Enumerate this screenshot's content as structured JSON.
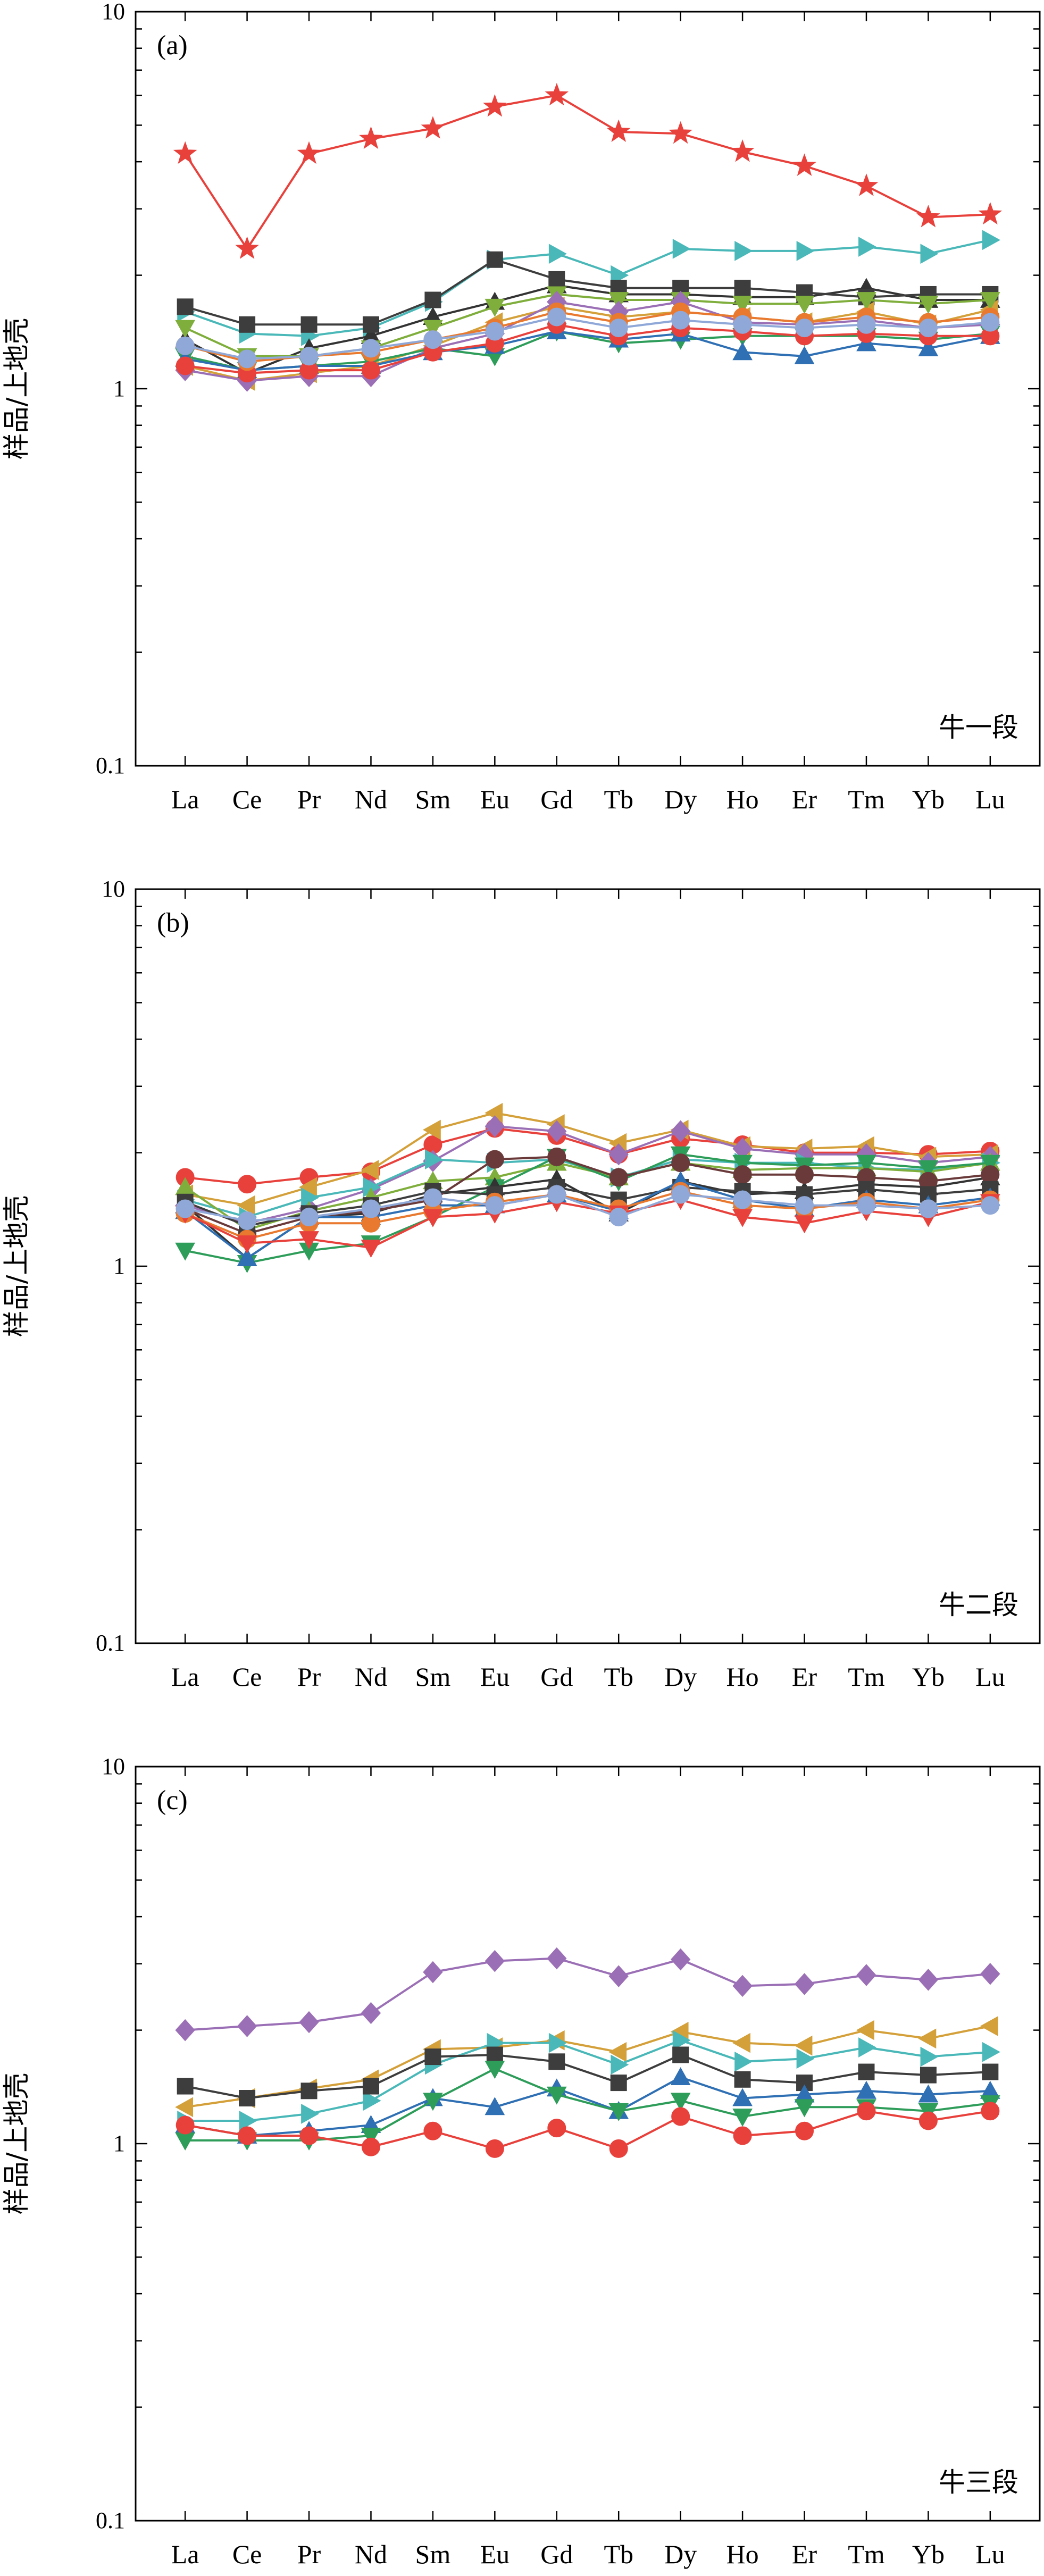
{
  "chart_data": [
    {
      "type": "line",
      "panel_label": "(a)",
      "section_label": "牛一段",
      "ylabel": "样品/上地壳",
      "yscale": "log",
      "ylim": [
        0.1,
        10
      ],
      "yticks": [
        "0.1",
        "1",
        "10"
      ],
      "categories": [
        "La",
        "Ce",
        "Pr",
        "Nd",
        "Sm",
        "Eu",
        "Gd",
        "Tb",
        "Dy",
        "Ho",
        "Er",
        "Tm",
        "Yb",
        "Lu"
      ],
      "series": [
        {
          "color": "#e8413c",
          "marker": "star",
          "values": [
            4.2,
            2.35,
            4.2,
            4.6,
            4.9,
            5.6,
            6.0,
            4.8,
            4.75,
            4.25,
            3.9,
            3.45,
            2.85,
            2.9
          ]
        },
        {
          "color": "#4ab8b8",
          "marker": "triangle-right",
          "values": [
            1.6,
            1.4,
            1.38,
            1.45,
            1.7,
            2.2,
            2.28,
            2.0,
            2.35,
            2.32,
            2.32,
            2.38,
            2.28,
            2.48
          ]
        },
        {
          "color": "#333333",
          "marker": "triangle-up",
          "values": [
            1.35,
            1.1,
            1.28,
            1.38,
            1.55,
            1.7,
            1.88,
            1.78,
            1.78,
            1.75,
            1.75,
            1.85,
            1.72,
            1.72
          ]
        },
        {
          "color": "#3d3d3d",
          "marker": "square",
          "values": [
            1.65,
            1.48,
            1.48,
            1.48,
            1.72,
            2.2,
            1.95,
            1.85,
            1.85,
            1.85,
            1.8,
            1.75,
            1.78,
            1.78
          ]
        },
        {
          "color": "#d4a03a",
          "marker": "triangle-left",
          "values": [
            1.15,
            1.05,
            1.1,
            1.15,
            1.3,
            1.5,
            1.65,
            1.55,
            1.6,
            1.55,
            1.5,
            1.6,
            1.48,
            1.62
          ]
        },
        {
          "color": "#7fae3c",
          "marker": "triangle-down",
          "values": [
            1.45,
            1.22,
            1.22,
            1.28,
            1.45,
            1.65,
            1.78,
            1.72,
            1.72,
            1.68,
            1.68,
            1.72,
            1.68,
            1.72
          ]
        },
        {
          "color": "#2e9d5a",
          "marker": "triangle-down",
          "values": [
            1.22,
            1.12,
            1.15,
            1.18,
            1.28,
            1.22,
            1.42,
            1.32,
            1.35,
            1.38,
            1.38,
            1.38,
            1.35,
            1.4
          ]
        },
        {
          "color": "#9b6fb5",
          "marker": "diamond",
          "values": [
            1.12,
            1.05,
            1.08,
            1.08,
            1.28,
            1.4,
            1.7,
            1.6,
            1.7,
            1.5,
            1.48,
            1.52,
            1.45,
            1.48
          ]
        },
        {
          "color": "#2f6fb3",
          "marker": "triangle-up",
          "values": [
            1.2,
            1.12,
            1.15,
            1.15,
            1.25,
            1.3,
            1.42,
            1.35,
            1.4,
            1.25,
            1.22,
            1.32,
            1.28,
            1.38
          ]
        },
        {
          "color": "#e8413c",
          "marker": "circle",
          "values": [
            1.15,
            1.1,
            1.12,
            1.12,
            1.25,
            1.32,
            1.48,
            1.38,
            1.45,
            1.42,
            1.38,
            1.4,
            1.38,
            1.38
          ]
        },
        {
          "color": "#e8792e",
          "marker": "circle",
          "values": [
            1.3,
            1.18,
            1.22,
            1.25,
            1.35,
            1.45,
            1.6,
            1.5,
            1.6,
            1.55,
            1.5,
            1.55,
            1.5,
            1.55
          ]
        },
        {
          "color": "#8fa8d8",
          "marker": "circle",
          "values": [
            1.3,
            1.2,
            1.22,
            1.28,
            1.35,
            1.42,
            1.55,
            1.45,
            1.52,
            1.48,
            1.45,
            1.48,
            1.45,
            1.5
          ]
        }
      ]
    },
    {
      "type": "line",
      "panel_label": "(b)",
      "section_label": "牛二段",
      "ylabel": "样品/上地壳",
      "yscale": "log",
      "ylim": [
        0.1,
        10
      ],
      "yticks": [
        "0.1",
        "1",
        "10"
      ],
      "categories": [
        "La",
        "Ce",
        "Pr",
        "Nd",
        "Sm",
        "Eu",
        "Gd",
        "Tb",
        "Dy",
        "Ho",
        "Er",
        "Tm",
        "Yb",
        "Lu"
      ],
      "series": [
        {
          "color": "#e8413c",
          "marker": "circle",
          "values": [
            1.72,
            1.65,
            1.72,
            1.78,
            2.1,
            2.32,
            2.22,
            1.98,
            2.18,
            2.1,
            2.0,
            2.0,
            1.98,
            2.02
          ]
        },
        {
          "color": "#d4a03a",
          "marker": "triangle-left",
          "values": [
            1.55,
            1.45,
            1.62,
            1.8,
            2.3,
            2.55,
            2.38,
            2.12,
            2.3,
            2.08,
            2.05,
            2.08,
            1.95,
            1.98
          ]
        },
        {
          "color": "#9b6fb5",
          "marker": "diamond",
          "values": [
            1.45,
            1.3,
            1.42,
            1.6,
            1.9,
            2.35,
            2.28,
            1.98,
            2.28,
            2.05,
            1.98,
            1.98,
            1.88,
            1.95
          ]
        },
        {
          "color": "#4ab8b8",
          "marker": "triangle-right",
          "values": [
            1.5,
            1.35,
            1.52,
            1.62,
            1.92,
            1.88,
            1.92,
            1.72,
            1.92,
            1.88,
            1.88,
            1.82,
            1.8,
            1.88
          ]
        },
        {
          "color": "#7fae3c",
          "marker": "triangle-up",
          "values": [
            1.62,
            1.25,
            1.4,
            1.52,
            1.68,
            1.72,
            1.88,
            1.72,
            1.88,
            1.8,
            1.82,
            1.82,
            1.78,
            1.88
          ]
        },
        {
          "color": "#2e9d5a",
          "marker": "triangle-down",
          "values": [
            1.1,
            1.02,
            1.1,
            1.15,
            1.35,
            1.62,
            1.95,
            1.68,
            1.98,
            1.88,
            1.85,
            1.88,
            1.82,
            1.88
          ]
        },
        {
          "color": "#333333",
          "marker": "triangle-up",
          "values": [
            1.45,
            1.05,
            1.35,
            1.38,
            1.55,
            1.62,
            1.7,
            1.38,
            1.68,
            1.55,
            1.58,
            1.65,
            1.62,
            1.72
          ]
        },
        {
          "color": "#6a3a3a",
          "marker": "circle",
          "values": [
            1.42,
            1.22,
            1.35,
            1.4,
            1.5,
            1.92,
            1.95,
            1.72,
            1.88,
            1.75,
            1.75,
            1.72,
            1.68,
            1.75
          ]
        },
        {
          "color": "#3d3d3d",
          "marker": "square",
          "values": [
            1.48,
            1.28,
            1.38,
            1.45,
            1.58,
            1.55,
            1.62,
            1.5,
            1.62,
            1.58,
            1.55,
            1.6,
            1.55,
            1.6
          ]
        },
        {
          "color": "#2f6fb3",
          "marker": "triangle-up",
          "values": [
            1.4,
            1.05,
            1.35,
            1.35,
            1.45,
            1.45,
            1.55,
            1.4,
            1.68,
            1.5,
            1.42,
            1.5,
            1.45,
            1.52
          ]
        },
        {
          "color": "#e8792e",
          "marker": "circle",
          "values": [
            1.38,
            1.18,
            1.3,
            1.3,
            1.4,
            1.48,
            1.55,
            1.42,
            1.58,
            1.45,
            1.42,
            1.48,
            1.42,
            1.5
          ]
        },
        {
          "color": "#e8413c",
          "marker": "triangle-down",
          "values": [
            1.38,
            1.15,
            1.18,
            1.12,
            1.35,
            1.38,
            1.48,
            1.38,
            1.5,
            1.35,
            1.3,
            1.4,
            1.35,
            1.48
          ]
        },
        {
          "color": "#8fa8d8",
          "marker": "circle",
          "values": [
            1.42,
            1.32,
            1.35,
            1.42,
            1.52,
            1.45,
            1.55,
            1.35,
            1.55,
            1.5,
            1.45,
            1.45,
            1.42,
            1.45
          ]
        }
      ]
    },
    {
      "type": "line",
      "panel_label": "(c)",
      "section_label": "牛三段",
      "ylabel": "样品/上地壳",
      "yscale": "log",
      "ylim": [
        0.1,
        10
      ],
      "yticks": [
        "0.1",
        "1",
        "10"
      ],
      "categories": [
        "La",
        "Ce",
        "Pr",
        "Nd",
        "Sm",
        "Eu",
        "Gd",
        "Tb",
        "Dy",
        "Ho",
        "Er",
        "Tm",
        "Yb",
        "Lu"
      ],
      "series": [
        {
          "color": "#9b6fb5",
          "marker": "diamond",
          "values": [
            2.0,
            2.05,
            2.1,
            2.22,
            2.85,
            3.05,
            3.1,
            2.78,
            3.08,
            2.62,
            2.65,
            2.8,
            2.72,
            2.82
          ]
        },
        {
          "color": "#d4a03a",
          "marker": "triangle-left",
          "values": [
            1.25,
            1.32,
            1.4,
            1.48,
            1.78,
            1.8,
            1.88,
            1.75,
            1.98,
            1.85,
            1.82,
            2.0,
            1.9,
            2.05
          ]
        },
        {
          "color": "#4ab8b8",
          "marker": "triangle-right",
          "values": [
            1.15,
            1.15,
            1.2,
            1.3,
            1.62,
            1.85,
            1.85,
            1.62,
            1.88,
            1.65,
            1.68,
            1.8,
            1.7,
            1.75
          ]
        },
        {
          "color": "#3d3d3d",
          "marker": "square",
          "values": [
            1.42,
            1.32,
            1.38,
            1.42,
            1.7,
            1.72,
            1.65,
            1.45,
            1.72,
            1.48,
            1.45,
            1.55,
            1.52,
            1.55
          ]
        },
        {
          "color": "#2f6fb3",
          "marker": "triangle-up",
          "values": [
            1.12,
            1.05,
            1.08,
            1.12,
            1.32,
            1.25,
            1.4,
            1.22,
            1.5,
            1.32,
            1.35,
            1.38,
            1.35,
            1.38
          ]
        },
        {
          "color": "#2e9d5a",
          "marker": "triangle-down",
          "values": [
            1.02,
            1.02,
            1.02,
            1.05,
            1.3,
            1.58,
            1.35,
            1.22,
            1.3,
            1.18,
            1.25,
            1.25,
            1.22,
            1.28
          ]
        },
        {
          "color": "#e8413c",
          "marker": "circle",
          "values": [
            1.12,
            1.05,
            1.05,
            0.98,
            1.08,
            0.97,
            1.1,
            0.97,
            1.18,
            1.05,
            1.08,
            1.22,
            1.15,
            1.22
          ]
        }
      ]
    }
  ]
}
